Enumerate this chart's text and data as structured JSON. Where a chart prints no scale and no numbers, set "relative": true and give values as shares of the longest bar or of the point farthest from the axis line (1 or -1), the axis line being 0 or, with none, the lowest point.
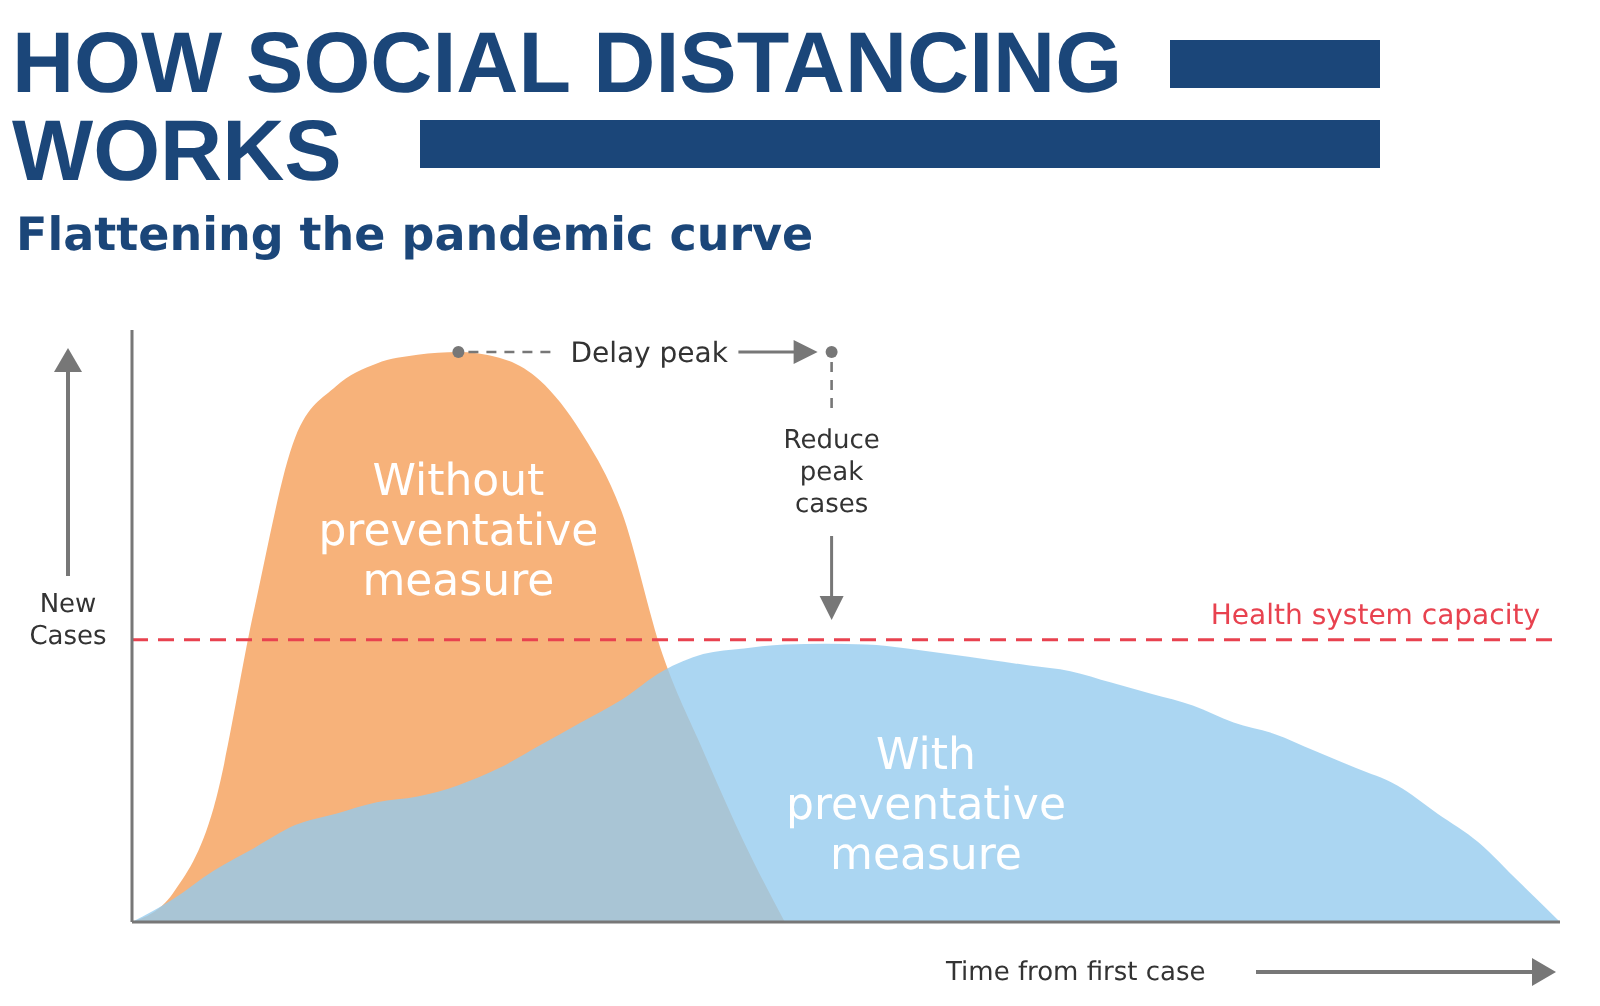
{
  "chart_data": {
    "type": "area",
    "relative": true,
    "title": "HOW SOCIAL DISTANCING WORKS",
    "subtitle": "Flattening the pandemic curve",
    "xlabel": "Time from first case",
    "ylabel": "New Cases",
    "categories": [
      null,
      null,
      null,
      null,
      null,
      null,
      null,
      null,
      null,
      null,
      null,
      null,
      null,
      null,
      null,
      null,
      null,
      null,
      null,
      null,
      null,
      null,
      null,
      null,
      null,
      null,
      null,
      null,
      null,
      null,
      null,
      null,
      null,
      null,
      null,
      null
    ],
    "series": [
      {
        "name": "Without preventative measure",
        "color": "#f7b27a",
        "values": [
          0,
          0.05,
          0.2,
          0.55,
          0.85,
          0.94,
          0.98,
          0.995,
          1,
          0.99,
          0.95,
          0.86,
          0.72,
          0.47,
          0.3,
          0.14,
          0,
          null,
          null,
          null,
          null,
          null,
          null,
          null,
          null,
          null,
          null,
          null,
          null,
          null,
          null,
          null,
          null,
          null,
          null,
          null
        ]
      },
      {
        "name": "With preventative measure",
        "color": "#93cbee",
        "values": [
          0,
          0.04,
          0.09,
          0.13,
          0.17,
          0.19,
          0.21,
          0.22,
          0.24,
          0.27,
          0.31,
          0.35,
          0.39,
          0.44,
          0.47,
          0.48,
          0.487,
          0.488,
          0.487,
          0.48,
          0.47,
          0.46,
          0.45,
          0.44,
          0.42,
          0.4,
          0.38,
          0.35,
          0.33,
          0.3,
          0.27,
          0.24,
          0.19,
          0.14,
          0.07,
          0
        ]
      }
    ],
    "ref_lines": [
      {
        "axis": "y",
        "value": 0.495,
        "label": "Health system capacity",
        "color": "#e8424f",
        "line_style": "dashed"
      }
    ],
    "annotations": [
      "Delay peak",
      "Reduce peak cases"
    ]
  }
}
